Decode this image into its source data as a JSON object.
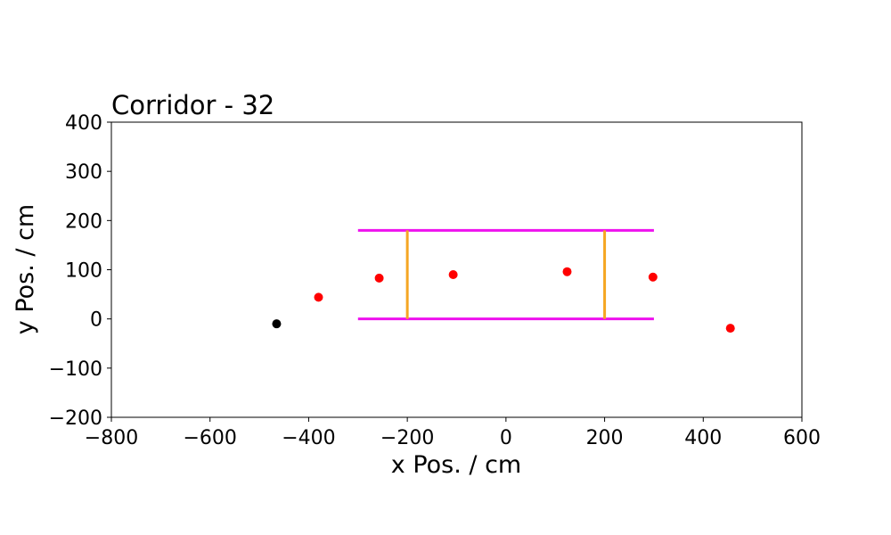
{
  "chart_data": {
    "type": "scatter",
    "title": "Corridor - 32",
    "xlabel": "x Pos. / cm",
    "ylabel": "y Pos. / cm",
    "xlim": [
      -800,
      600
    ],
    "ylim": [
      -200,
      400
    ],
    "xticks": [
      -800,
      -600,
      -400,
      -200,
      0,
      200,
      400,
      600
    ],
    "yticks": [
      -200,
      -100,
      0,
      100,
      200,
      300,
      400
    ],
    "xtick_labels": [
      "−800",
      "−600",
      "−400",
      "−200",
      "0",
      "200",
      "400",
      "600"
    ],
    "ytick_labels": [
      "−200",
      "−100",
      "0",
      "100",
      "200",
      "300",
      "400"
    ],
    "grid": false,
    "walls": {
      "color": "#ee11ee",
      "segments": [
        {
          "x": [
            -300,
            300
          ],
          "y": [
            180,
            180
          ]
        },
        {
          "x": [
            -300,
            300
          ],
          "y": [
            0,
            0
          ]
        }
      ]
    },
    "gates": {
      "color": "#f5a623",
      "segments": [
        {
          "x": [
            -200,
            -200
          ],
          "y": [
            0,
            180
          ]
        },
        {
          "x": [
            200,
            200
          ],
          "y": [
            0,
            180
          ]
        }
      ]
    },
    "points": {
      "color": "#ff0000",
      "data": [
        {
          "x": -380,
          "y": 44
        },
        {
          "x": -257,
          "y": 83
        },
        {
          "x": -107,
          "y": 90
        },
        {
          "x": 124,
          "y": 96
        },
        {
          "x": 298,
          "y": 85
        },
        {
          "x": 455,
          "y": -19
        }
      ]
    },
    "current_point": {
      "color": "#000000",
      "x": -465,
      "y": -10
    }
  }
}
